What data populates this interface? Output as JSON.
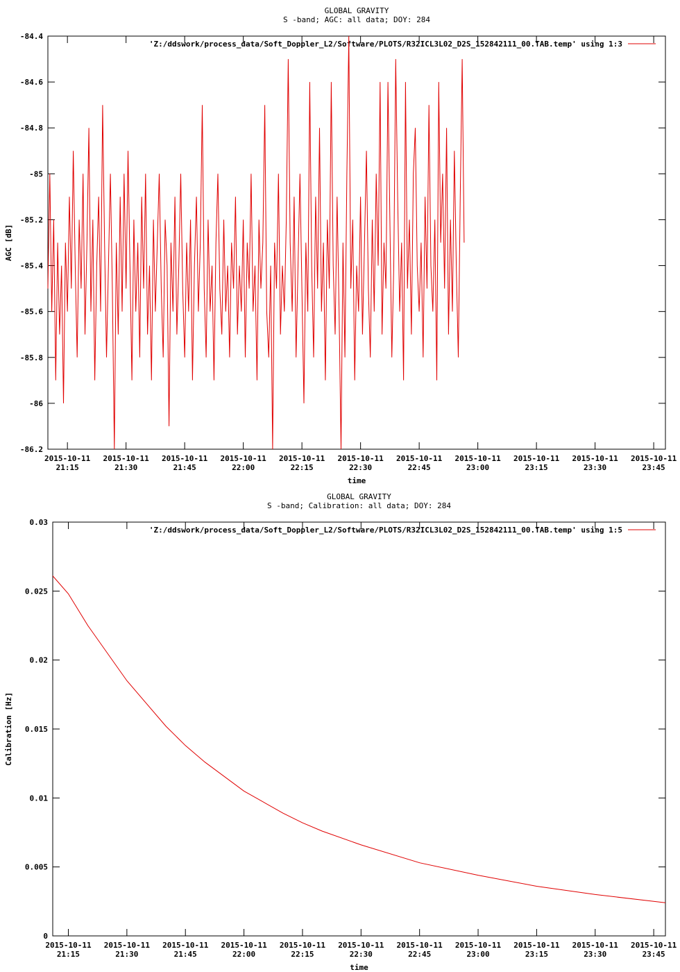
{
  "chart_data": [
    {
      "type": "line",
      "title": "GLOBAL GRAVITY",
      "subtitle": "S -band; AGC: all data; DOY: 284",
      "xlabel": "time",
      "ylabel": "AGC [dB]",
      "ylim": [
        -86.2,
        -84.4
      ],
      "yticks": [
        -84.4,
        -84.6,
        -84.8,
        -85,
        -85.2,
        -85.4,
        -85.6,
        -85.8,
        -86,
        -86.2
      ],
      "ytick_labels": [
        "-84.4",
        "-84.6",
        "-84.8",
        "-85",
        "-85.2",
        "-85.4",
        "-85.6",
        "-85.8",
        "-86",
        "-86.2"
      ],
      "xlim": [
        "2015-10-11 21:10",
        "2015-10-11 23:48"
      ],
      "xticks": [
        "2015-10-11 21:15",
        "2015-10-11 21:30",
        "2015-10-11 21:45",
        "2015-10-11 22:00",
        "2015-10-11 22:15",
        "2015-10-11 22:30",
        "2015-10-11 22:45",
        "2015-10-11 23:00",
        "2015-10-11 23:15",
        "2015-10-11 23:30",
        "2015-10-11 23:45"
      ],
      "xtick_labels": [
        [
          "2015-10-11",
          "21:15"
        ],
        [
          "2015-10-11",
          "21:30"
        ],
        [
          "2015-10-11",
          "21:45"
        ],
        [
          "2015-10-11",
          "22:00"
        ],
        [
          "2015-10-11",
          "22:15"
        ],
        [
          "2015-10-11",
          "22:30"
        ],
        [
          "2015-10-11",
          "22:45"
        ],
        [
          "2015-10-11",
          "23:00"
        ],
        [
          "2015-10-11",
          "23:15"
        ],
        [
          "2015-10-11",
          "23:30"
        ],
        [
          "2015-10-11",
          "23:45"
        ]
      ],
      "legend_position": "top-right",
      "series": [
        {
          "name": "'Z:/ddswork/process_data/Soft_Doppler_L2/Software/PLOTS/R32ICL3L02_D2S_152842111_00.TAB.temp' using 1:3",
          "color": "#e00000",
          "x_start": "2015-10-11 21:10",
          "x_step_minutes": 0.5,
          "y": [
            -85.5,
            -85.0,
            -85.6,
            -85.2,
            -85.9,
            -85.3,
            -85.7,
            -85.4,
            -86.0,
            -85.3,
            -85.6,
            -85.1,
            -85.5,
            -84.9,
            -85.4,
            -85.8,
            -85.2,
            -85.5,
            -85.0,
            -85.7,
            -85.3,
            -84.8,
            -85.6,
            -85.2,
            -85.9,
            -85.4,
            -85.1,
            -85.6,
            -84.7,
            -85.3,
            -85.8,
            -85.4,
            -85.0,
            -85.5,
            -86.2,
            -85.3,
            -85.7,
            -85.1,
            -85.6,
            -85.0,
            -85.5,
            -84.9,
            -85.4,
            -85.9,
            -85.2,
            -85.6,
            -85.3,
            -85.8,
            -85.1,
            -85.5,
            -85.0,
            -85.7,
            -85.4,
            -85.9,
            -85.2,
            -85.6,
            -85.3,
            -85.0,
            -85.5,
            -85.8,
            -85.2,
            -85.4,
            -86.1,
            -85.3,
            -85.6,
            -85.1,
            -85.7,
            -85.4,
            -85.0,
            -85.5,
            -85.8,
            -85.3,
            -85.6,
            -85.2,
            -85.9,
            -85.4,
            -85.1,
            -85.6,
            -85.3,
            -84.7,
            -85.5,
            -85.8,
            -85.2,
            -85.6,
            -85.4,
            -85.9,
            -85.3,
            -85.0,
            -85.5,
            -85.7,
            -85.2,
            -85.6,
            -85.4,
            -85.8,
            -85.3,
            -85.5,
            -85.1,
            -85.7,
            -85.4,
            -85.6,
            -85.2,
            -85.8,
            -85.3,
            -85.5,
            -85.0,
            -85.6,
            -85.4,
            -85.9,
            -85.2,
            -85.5,
            -85.3,
            -84.7,
            -85.6,
            -85.8,
            -85.4,
            -86.2,
            -85.3,
            -85.5,
            -85.0,
            -85.7,
            -85.4,
            -85.6,
            -85.2,
            -84.5,
            -85.3,
            -85.6,
            -85.1,
            -85.8,
            -85.4,
            -85.0,
            -85.5,
            -86.0,
            -85.3,
            -85.6,
            -84.6,
            -85.4,
            -85.8,
            -85.1,
            -85.5,
            -84.8,
            -85.6,
            -85.3,
            -85.9,
            -85.2,
            -85.5,
            -84.6,
            -85.4,
            -85.7,
            -85.1,
            -85.6,
            -86.2,
            -85.3,
            -85.8,
            -85.0,
            -84.4,
            -85.5,
            -85.2,
            -85.9,
            -85.4,
            -85.6,
            -85.1,
            -85.7,
            -85.3,
            -84.9,
            -85.5,
            -85.8,
            -85.2,
            -85.6,
            -85.0,
            -85.4,
            -84.6,
            -85.7,
            -85.3,
            -85.5,
            -84.6,
            -85.2,
            -85.8,
            -85.4,
            -84.5,
            -85.1,
            -85.6,
            -85.3,
            -85.9,
            -84.6,
            -85.5,
            -85.2,
            -85.7,
            -85.0,
            -84.8,
            -85.4,
            -85.6,
            -85.3,
            -85.8,
            -85.1,
            -85.5,
            -84.7,
            -85.4,
            -85.6,
            -85.2,
            -85.9,
            -84.6,
            -85.3,
            -85.0,
            -85.5,
            -84.8,
            -85.7,
            -85.2,
            -85.6,
            -84.9,
            -85.4,
            -85.8,
            -85.1,
            -84.5,
            -85.3
          ]
        }
      ]
    },
    {
      "type": "line",
      "title": "GLOBAL GRAVITY",
      "subtitle": "S -band; Calibration: all data; DOY: 284",
      "xlabel": "time",
      "ylabel": "Calibration [Hz]",
      "ylim": [
        0,
        0.03
      ],
      "yticks": [
        0,
        0.005,
        0.01,
        0.015,
        0.02,
        0.025,
        0.03
      ],
      "ytick_labels": [
        "0",
        "0.005",
        "0.01",
        "0.015",
        "0.02",
        "0.025",
        "0.03"
      ],
      "xlim": [
        "2015-10-11 21:11",
        "2015-10-11 23:48"
      ],
      "xticks": [
        "2015-10-11 21:15",
        "2015-10-11 21:30",
        "2015-10-11 21:45",
        "2015-10-11 22:00",
        "2015-10-11 22:15",
        "2015-10-11 22:30",
        "2015-10-11 22:45",
        "2015-10-11 23:00",
        "2015-10-11 23:15",
        "2015-10-11 23:30",
        "2015-10-11 23:45"
      ],
      "xtick_labels": [
        [
          "2015-10-11",
          "21:15"
        ],
        [
          "2015-10-11",
          "21:30"
        ],
        [
          "2015-10-11",
          "21:45"
        ],
        [
          "2015-10-11",
          "22:00"
        ],
        [
          "2015-10-11",
          "22:15"
        ],
        [
          "2015-10-11",
          "22:30"
        ],
        [
          "2015-10-11",
          "22:45"
        ],
        [
          "2015-10-11",
          "23:00"
        ],
        [
          "2015-10-11",
          "23:15"
        ],
        [
          "2015-10-11",
          "23:30"
        ],
        [
          "2015-10-11",
          "23:45"
        ]
      ],
      "legend_position": "top-right",
      "series": [
        {
          "name": "'Z:/ddswork/process_data/Soft_Doppler_L2/Software/PLOTS/R32ICL3L02_D2S_152842111_00.TAB.temp' using 1:5",
          "color": "#e00000",
          "x": [
            "2015-10-11 21:11",
            "2015-10-11 21:15",
            "2015-10-11 21:20",
            "2015-10-11 21:30",
            "2015-10-11 21:40",
            "2015-10-11 21:45",
            "2015-10-11 21:50",
            "2015-10-11 22:00",
            "2015-10-11 22:10",
            "2015-10-11 22:15",
            "2015-10-11 22:20",
            "2015-10-11 22:30",
            "2015-10-11 22:45",
            "2015-10-11 23:00",
            "2015-10-11 23:15",
            "2015-10-11 23:30",
            "2015-10-11 23:45",
            "2015-10-11 23:48"
          ],
          "y": [
            0.0261,
            0.0248,
            0.0225,
            0.0185,
            0.0152,
            0.0138,
            0.0126,
            0.0105,
            0.0089,
            0.0082,
            0.0076,
            0.0066,
            0.0053,
            0.0044,
            0.0036,
            0.003,
            0.0025,
            0.0024
          ]
        }
      ]
    }
  ]
}
